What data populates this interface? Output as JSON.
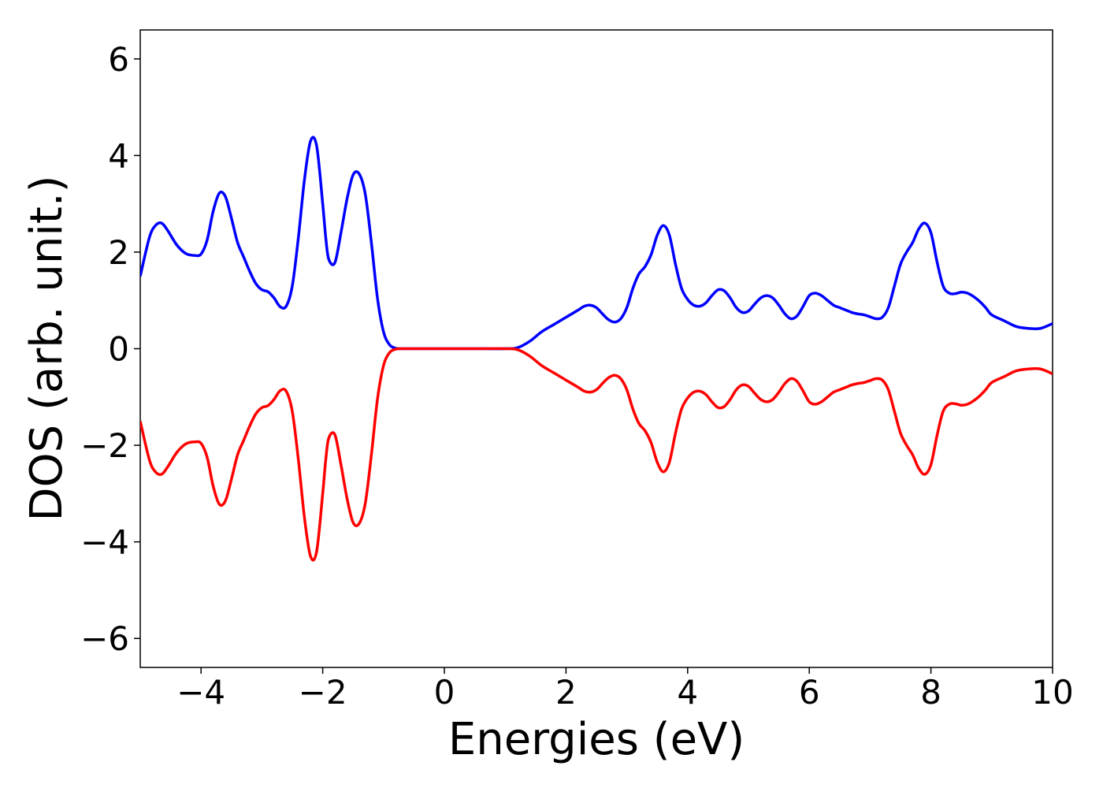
{
  "chart_data": {
    "type": "line",
    "xlabel": "Energies (eV)",
    "ylabel": "DOS (arb. unit.)",
    "xlim": [
      -5,
      10
    ],
    "ylim": [
      -6.6,
      6.6
    ],
    "xticks": [
      -4,
      -2,
      0,
      2,
      4,
      6,
      8,
      10
    ],
    "yticks": [
      -6,
      -4,
      -2,
      0,
      2,
      4,
      6
    ],
    "xtick_labels": [
      "−4",
      "−2",
      "0",
      "2",
      "4",
      "6",
      "8",
      "10"
    ],
    "ytick_labels": [
      "−6",
      "−4",
      "−2",
      "0",
      "2",
      "4",
      "6"
    ],
    "grid": false,
    "legend": "none",
    "series": [
      {
        "color": "#0000ff",
        "x": [
          -5.0,
          -4.85,
          -4.75,
          -4.65,
          -4.55,
          -4.4,
          -4.25,
          -4.1,
          -4.0,
          -3.9,
          -3.8,
          -3.7,
          -3.6,
          -3.5,
          -3.4,
          -3.3,
          -3.2,
          -3.1,
          -3.0,
          -2.9,
          -2.8,
          -2.7,
          -2.6,
          -2.5,
          -2.4,
          -2.3,
          -2.2,
          -2.1,
          -2.0,
          -1.95,
          -1.9,
          -1.8,
          -1.7,
          -1.6,
          -1.5,
          -1.4,
          -1.3,
          -1.2,
          -1.1,
          -1.0,
          -0.9,
          -0.8,
          -0.7,
          -0.6,
          -0.5,
          -0.4,
          0.0,
          0.5,
          1.0,
          1.2,
          1.4,
          1.6,
          1.8,
          2.0,
          2.2,
          2.3,
          2.4,
          2.5,
          2.6,
          2.7,
          2.8,
          2.9,
          3.0,
          3.1,
          3.2,
          3.3,
          3.4,
          3.5,
          3.6,
          3.7,
          3.8,
          3.9,
          4.0,
          4.1,
          4.2,
          4.3,
          4.4,
          4.5,
          4.6,
          4.7,
          4.8,
          4.9,
          5.0,
          5.1,
          5.2,
          5.3,
          5.4,
          5.5,
          5.6,
          5.7,
          5.8,
          5.9,
          6.0,
          6.1,
          6.2,
          6.3,
          6.4,
          6.5,
          6.6,
          6.7,
          6.8,
          6.9,
          7.0,
          7.1,
          7.2,
          7.3,
          7.4,
          7.5,
          7.6,
          7.7,
          7.8,
          7.9,
          8.0,
          8.1,
          8.2,
          8.3,
          8.4,
          8.5,
          8.6,
          8.7,
          8.8,
          8.9,
          9.0,
          9.2,
          9.4,
          9.6,
          9.8,
          10.0
        ],
        "y": [
          1.5,
          2.3,
          2.55,
          2.6,
          2.45,
          2.15,
          1.97,
          1.93,
          1.96,
          2.25,
          2.85,
          3.22,
          3.15,
          2.7,
          2.2,
          1.9,
          1.6,
          1.35,
          1.22,
          1.18,
          1.05,
          0.87,
          0.88,
          1.3,
          2.3,
          3.5,
          4.3,
          4.2,
          3.0,
          2.3,
          1.85,
          1.78,
          2.4,
          3.1,
          3.6,
          3.62,
          3.2,
          2.2,
          1.05,
          0.35,
          0.08,
          0.01,
          0.0,
          0.0,
          0.0,
          0.0,
          0.0,
          0.0,
          0.0,
          0.02,
          0.15,
          0.35,
          0.5,
          0.65,
          0.8,
          0.88,
          0.9,
          0.85,
          0.72,
          0.6,
          0.55,
          0.62,
          0.85,
          1.25,
          1.55,
          1.7,
          1.95,
          2.35,
          2.55,
          2.35,
          1.75,
          1.25,
          1.02,
          0.9,
          0.88,
          0.95,
          1.1,
          1.22,
          1.2,
          1.05,
          0.85,
          0.75,
          0.78,
          0.92,
          1.05,
          1.1,
          1.05,
          0.9,
          0.72,
          0.62,
          0.68,
          0.88,
          1.1,
          1.15,
          1.1,
          1.0,
          0.9,
          0.85,
          0.8,
          0.75,
          0.72,
          0.7,
          0.66,
          0.62,
          0.65,
          0.85,
          1.3,
          1.75,
          2.0,
          2.2,
          2.48,
          2.6,
          2.4,
          1.8,
          1.3,
          1.15,
          1.14,
          1.17,
          1.15,
          1.08,
          0.98,
          0.85,
          0.7,
          0.58,
          0.46,
          0.42,
          0.42,
          0.52
        ]
      },
      {
        "color": "#ff0000",
        "x": [
          -5.0,
          -4.85,
          -4.75,
          -4.65,
          -4.55,
          -4.4,
          -4.25,
          -4.1,
          -4.0,
          -3.9,
          -3.8,
          -3.7,
          -3.6,
          -3.5,
          -3.4,
          -3.3,
          -3.2,
          -3.1,
          -3.0,
          -2.9,
          -2.8,
          -2.7,
          -2.6,
          -2.5,
          -2.4,
          -2.3,
          -2.2,
          -2.1,
          -2.0,
          -1.95,
          -1.9,
          -1.8,
          -1.7,
          -1.6,
          -1.5,
          -1.4,
          -1.3,
          -1.2,
          -1.1,
          -1.0,
          -0.9,
          -0.8,
          -0.7,
          -0.6,
          -0.5,
          -0.4,
          0.0,
          0.5,
          1.0,
          1.2,
          1.4,
          1.6,
          1.8,
          2.0,
          2.2,
          2.3,
          2.4,
          2.5,
          2.6,
          2.7,
          2.8,
          2.9,
          3.0,
          3.1,
          3.2,
          3.3,
          3.4,
          3.5,
          3.6,
          3.7,
          3.8,
          3.9,
          4.0,
          4.1,
          4.2,
          4.3,
          4.4,
          4.5,
          4.6,
          4.7,
          4.8,
          4.9,
          5.0,
          5.1,
          5.2,
          5.3,
          5.4,
          5.5,
          5.6,
          5.7,
          5.8,
          5.9,
          6.0,
          6.1,
          6.2,
          6.3,
          6.4,
          6.5,
          6.6,
          6.7,
          6.8,
          6.9,
          7.0,
          7.1,
          7.2,
          7.3,
          7.4,
          7.5,
          7.6,
          7.7,
          7.8,
          7.9,
          8.0,
          8.1,
          8.2,
          8.3,
          8.4,
          8.5,
          8.6,
          8.7,
          8.8,
          8.9,
          9.0,
          9.2,
          9.4,
          9.6,
          9.8,
          10.0
        ],
        "y": [
          -1.5,
          -2.3,
          -2.55,
          -2.6,
          -2.45,
          -2.15,
          -1.97,
          -1.93,
          -1.96,
          -2.25,
          -2.85,
          -3.22,
          -3.15,
          -2.7,
          -2.2,
          -1.9,
          -1.6,
          -1.35,
          -1.22,
          -1.18,
          -1.05,
          -0.87,
          -0.88,
          -1.3,
          -2.3,
          -3.5,
          -4.3,
          -4.2,
          -3.0,
          -2.3,
          -1.85,
          -1.78,
          -2.4,
          -3.1,
          -3.6,
          -3.62,
          -3.2,
          -2.2,
          -1.05,
          -0.35,
          -0.08,
          -0.01,
          0.0,
          0.0,
          0.0,
          0.0,
          0.0,
          0.0,
          0.0,
          -0.02,
          -0.15,
          -0.35,
          -0.5,
          -0.65,
          -0.8,
          -0.88,
          -0.9,
          -0.85,
          -0.72,
          -0.6,
          -0.55,
          -0.62,
          -0.85,
          -1.25,
          -1.55,
          -1.7,
          -1.95,
          -2.35,
          -2.55,
          -2.35,
          -1.75,
          -1.25,
          -1.02,
          -0.9,
          -0.88,
          -0.95,
          -1.1,
          -1.22,
          -1.2,
          -1.05,
          -0.85,
          -0.75,
          -0.78,
          -0.92,
          -1.05,
          -1.1,
          -1.05,
          -0.9,
          -0.72,
          -0.62,
          -0.68,
          -0.88,
          -1.1,
          -1.15,
          -1.1,
          -1.0,
          -0.9,
          -0.85,
          -0.8,
          -0.75,
          -0.72,
          -0.7,
          -0.66,
          -0.62,
          -0.65,
          -0.85,
          -1.3,
          -1.75,
          -2.0,
          -2.2,
          -2.48,
          -2.6,
          -2.4,
          -1.8,
          -1.3,
          -1.15,
          -1.14,
          -1.17,
          -1.15,
          -1.08,
          -0.98,
          -0.85,
          -0.7,
          -0.58,
          -0.46,
          -0.42,
          -0.42,
          -0.52
        ]
      }
    ]
  }
}
